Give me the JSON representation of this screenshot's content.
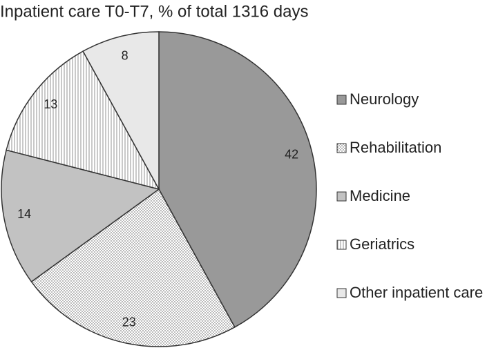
{
  "chart_data": {
    "type": "pie",
    "title": "Inpatient care T0-T7, % of total 1316 days",
    "categories": [
      "Neurology",
      "Rehabilitation",
      "Medicine",
      "Geriatrics",
      "Other inpatient care"
    ],
    "values": [
      42,
      23,
      14,
      13,
      8
    ],
    "colors": [
      "#999999",
      "#ffffff",
      "#c2c2c2",
      "#ffffff",
      "#e8e8e8"
    ],
    "patterns": [
      "solid",
      "dots",
      "solid",
      "vlines",
      "solid"
    ],
    "legend": "right"
  }
}
